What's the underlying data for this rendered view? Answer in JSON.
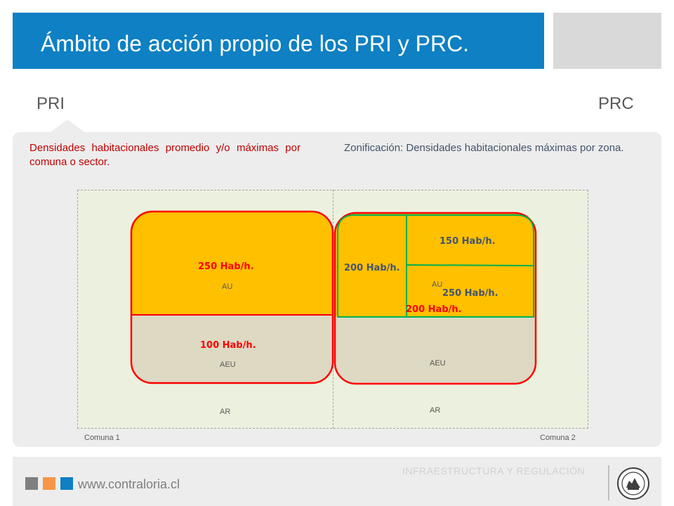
{
  "header": {
    "title": "Ámbito de acción propio de los PRI y PRC."
  },
  "labels": {
    "pri": "PRI",
    "prc": "PRC"
  },
  "descriptions": {
    "pri": "Densidades habitacionales promedio y/o máximas por comuna o sector.",
    "prc": "Zonificación: Densidades habitacionales máximas por zona."
  },
  "diagram": {
    "comuna1": {
      "name": "Comuna 1",
      "au_label": "AU",
      "au_density": "250 Hab/h.",
      "aeu_label": "AEU",
      "aeu_density": "100 Hab/h.",
      "ar_label": "AR"
    },
    "comuna2": {
      "name": "Comuna 2",
      "au_label": "AU",
      "zone_left_density": "200 Hab/h.",
      "zone_top_right_density": "150 Hab/h.",
      "zone_bottom_right_density": "250 Hab/h.",
      "au_overall_density": "200 Hab/h.",
      "aeu_label": "AEU",
      "ar_label": "AR"
    }
  },
  "colors": {
    "title_blue": "#0e80c3",
    "urban_area": "#ffc000",
    "extension_area": "#ddd9c3",
    "rural_area": "#ebf1de",
    "pri_limit": "#ff0000",
    "prc_zone": "#00b050",
    "accent_red": "#c00000"
  },
  "footer": {
    "text": "INFRAESTRUCTURA Y REGULACIÓN",
    "url": "www.contraloria.cl",
    "logo": "contraloria-seal-icon"
  }
}
